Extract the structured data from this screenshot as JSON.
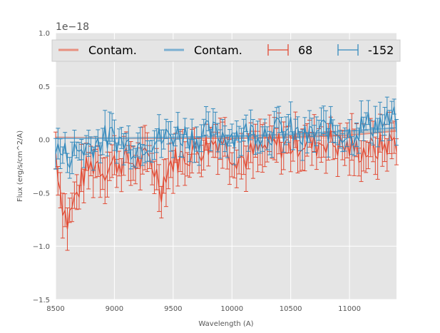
{
  "chart_data": {
    "type": "line",
    "xlabel": "Wavelength (A)",
    "ylabel": "Flux (erg/s/cm^2/A)",
    "offset_text": "1e−18",
    "xlim": [
      8500,
      11400
    ],
    "ylim": [
      -1.5,
      1.0
    ],
    "xticks": [
      8500,
      9000,
      9500,
      10000,
      10500,
      11000
    ],
    "xtick_labels": [
      "8500",
      "9000",
      "9500",
      "10000",
      "10500",
      "11000"
    ],
    "yticks": [
      -1.5,
      -1.0,
      -0.5,
      0.0,
      0.5,
      1.0
    ],
    "ytick_labels": [
      "−1.5",
      "−1.0",
      "−0.5",
      "0.0",
      "0.5",
      "1.0"
    ],
    "grid": true,
    "legend_placement": "top",
    "y_unit_scale": 1e-18,
    "series": [
      {
        "name": "68",
        "color": "#E24A33",
        "anchors_x": [
          8500,
          8550,
          8600,
          8650,
          8700,
          8750,
          8800,
          8850,
          8900,
          8950,
          9000,
          9100,
          9200,
          9300,
          9350,
          9400,
          9450,
          9500,
          9600,
          9700,
          9800,
          9900,
          10000,
          10100,
          10200,
          10300,
          10400,
          10500,
          10600,
          10700,
          10800,
          10900,
          11000,
          11100,
          11200,
          11300,
          11400
        ],
        "anchors_y": [
          -0.1,
          -0.55,
          -0.78,
          -0.6,
          -0.45,
          -0.3,
          -0.25,
          -0.2,
          -0.28,
          -0.25,
          -0.22,
          -0.2,
          -0.22,
          -0.18,
          -0.3,
          -0.45,
          -0.25,
          -0.2,
          -0.15,
          -0.1,
          -0.05,
          0.02,
          -0.12,
          -0.18,
          -0.12,
          -0.08,
          -0.05,
          -0.05,
          -0.02,
          -0.05,
          0.0,
          -0.05,
          -0.08,
          -0.1,
          -0.1,
          -0.05,
          0.0
        ],
        "error": 0.15
      },
      {
        "name": "-152",
        "color": "#348ABD",
        "anchors_x": [
          8500,
          8600,
          8700,
          8800,
          8900,
          9000,
          9100,
          9200,
          9300,
          9400,
          9500,
          9600,
          9700,
          9800,
          9900,
          10000,
          10100,
          10200,
          10300,
          10400,
          10500,
          10600,
          10700,
          10800,
          10900,
          11000,
          11100,
          11200,
          11300,
          11400
        ],
        "anchors_y": [
          -0.1,
          -0.15,
          -0.1,
          -0.05,
          0.0,
          0.02,
          -0.05,
          -0.05,
          0.0,
          0.0,
          0.05,
          0.05,
          0.02,
          0.05,
          0.05,
          0.05,
          0.05,
          0.08,
          0.08,
          0.08,
          0.08,
          0.0,
          0.05,
          0.1,
          0.08,
          0.05,
          0.12,
          0.15,
          0.15,
          0.18
        ],
        "error": 0.1
      },
      {
        "name": "Contam.",
        "color": "#E8907F",
        "x": [
          8500,
          9000,
          9500,
          10000,
          10500,
          11000,
          11400
        ],
        "y": [
          0.02,
          0.01,
          0.01,
          0.01,
          0.02,
          0.04,
          0.08
        ]
      },
      {
        "name": "Contam.",
        "color": "#7BAFD1",
        "x": [
          8500,
          9000,
          9500,
          10000,
          10500,
          11000,
          11400
        ],
        "y": [
          0.01,
          0.01,
          0.02,
          0.03,
          0.05,
          0.08,
          0.11
        ]
      }
    ],
    "contam_band": {
      "x": [
        8500,
        9000,
        9500,
        10000,
        10500,
        11000,
        11400
      ],
      "y": [
        0.015,
        0.012,
        0.015,
        0.02,
        0.035,
        0.06,
        0.09
      ]
    },
    "legend_entries": [
      {
        "label": "Contam.",
        "style": "line",
        "color": "#E8907F"
      },
      {
        "label": "Contam.",
        "style": "line",
        "color": "#7BAFD1"
      },
      {
        "label": "68",
        "style": "errorbar",
        "color": "#E24A33"
      },
      {
        "label": "-152",
        "style": "errorbar",
        "color": "#348ABD"
      }
    ]
  }
}
